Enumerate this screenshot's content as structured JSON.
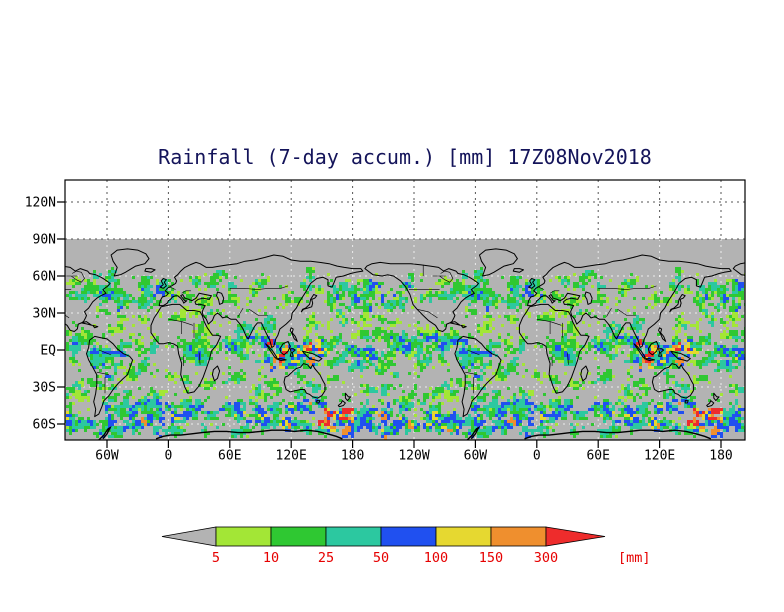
{
  "title": "Rainfall (7-day accum.) [mm] 17Z08Nov2018",
  "map": {
    "background_color": "#b3b3b3",
    "coastline_color": "#000000",
    "lat_labels": [
      "120N",
      "90N",
      "60N",
      "30N",
      "EQ",
      "30S",
      "60S"
    ],
    "lon_labels": [
      "60W",
      "0",
      "60E",
      "120E",
      "180",
      "120W",
      "60W",
      "0",
      "60E",
      "120E",
      "180"
    ]
  },
  "colorbar": {
    "units": "[mm]",
    "tick_labels": [
      "5",
      "10",
      "25",
      "50",
      "100",
      "150",
      "300"
    ],
    "colors": [
      "#b3b3b3",
      "#a3e636",
      "#2fc832",
      "#2cc8a0",
      "#2050f0",
      "#e6d830",
      "#ef8f2e",
      "#ee2c2c"
    ],
    "label_color": "#e60000"
  }
}
